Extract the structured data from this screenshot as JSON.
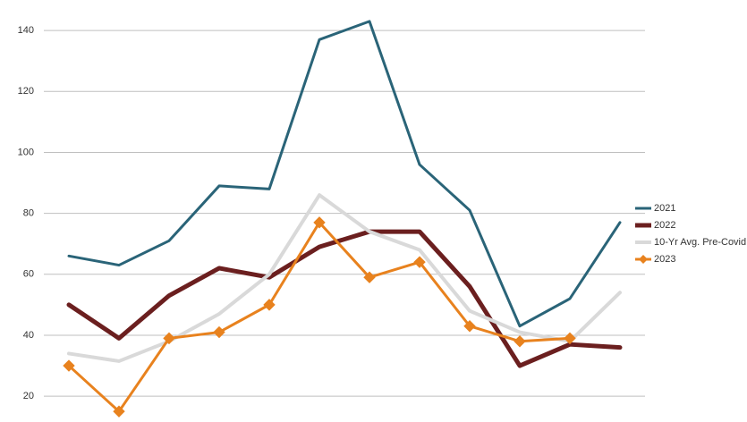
{
  "chart_data": {
    "type": "line",
    "x": [
      1,
      2,
      3,
      4,
      5,
      6,
      7,
      8,
      9,
      10,
      11,
      12
    ],
    "xlim": [
      0.5,
      12.5
    ],
    "ylim": [
      13,
      150
    ],
    "yticks": [
      20,
      40,
      60,
      80,
      100,
      120,
      140
    ],
    "grid": true,
    "legend": "right",
    "series": [
      {
        "name": "2021",
        "color": "#2a6478",
        "width": 3,
        "marker": "none",
        "values": [
          66,
          63,
          71,
          89,
          88,
          137,
          143,
          96,
          81,
          43,
          52,
          77
        ]
      },
      {
        "name": "2022",
        "color": "#6b1f1f",
        "width": 5,
        "marker": "none",
        "values": [
          50,
          39,
          53,
          62,
          59,
          69,
          74,
          74,
          56,
          30,
          37,
          36
        ]
      },
      {
        "name": "10-Yr Avg. Pre-Covid",
        "color": "#d9d9d9",
        "width": 4,
        "marker": "none",
        "values": [
          34,
          31.5,
          38,
          47,
          60,
          86,
          74,
          68,
          48,
          41,
          38,
          54
        ]
      },
      {
        "name": "2023",
        "color": "#e8821e",
        "width": 3,
        "marker": "diamond",
        "values": [
          30,
          15,
          39,
          41,
          50,
          77,
          59,
          64,
          43,
          38,
          39,
          null
        ]
      }
    ]
  }
}
